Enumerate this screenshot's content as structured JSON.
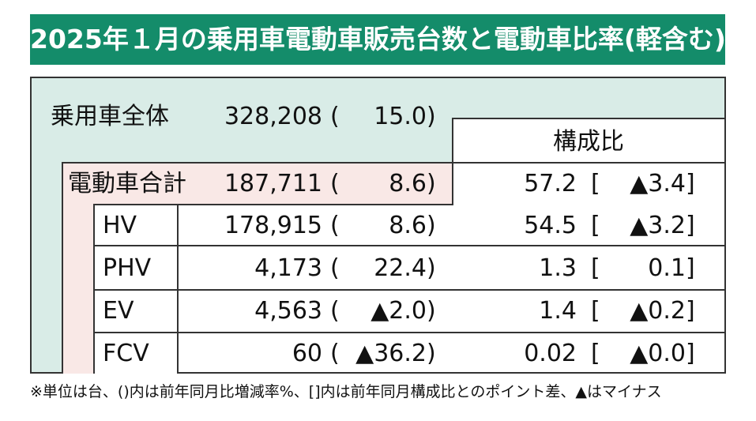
{
  "title": "2025年１月の乗用車電動車販売台数と電動車比率(軽含む)",
  "share_header": "構成比",
  "footnote": "※単位は台、()内は前年同月比増減率%、[]内は前年同月構成比とのポイント差、▲はマイナス",
  "chart_data": {
    "type": "table",
    "rows": [
      {
        "label": "乗用車全体",
        "units": "328,208",
        "yoy": "15.0",
        "share": "",
        "share_diff": ""
      },
      {
        "label": "電動車合計",
        "units": "187,711",
        "yoy": "8.6",
        "share": "57.2",
        "share_diff": "▲3.4"
      },
      {
        "label": "HV",
        "units": "178,915",
        "yoy": "8.6",
        "share": "54.5",
        "share_diff": "▲3.2"
      },
      {
        "label": "PHV",
        "units": "4,173",
        "yoy": "22.4",
        "share": "1.3",
        "share_diff": "0.1"
      },
      {
        "label": "EV",
        "units": "4,563",
        "yoy": "▲2.0",
        "share": "1.4",
        "share_diff": "▲0.2"
      },
      {
        "label": "FCV",
        "units": "60",
        "yoy": "▲36.2",
        "share": "0.02",
        "share_diff": "▲0.0"
      }
    ]
  }
}
